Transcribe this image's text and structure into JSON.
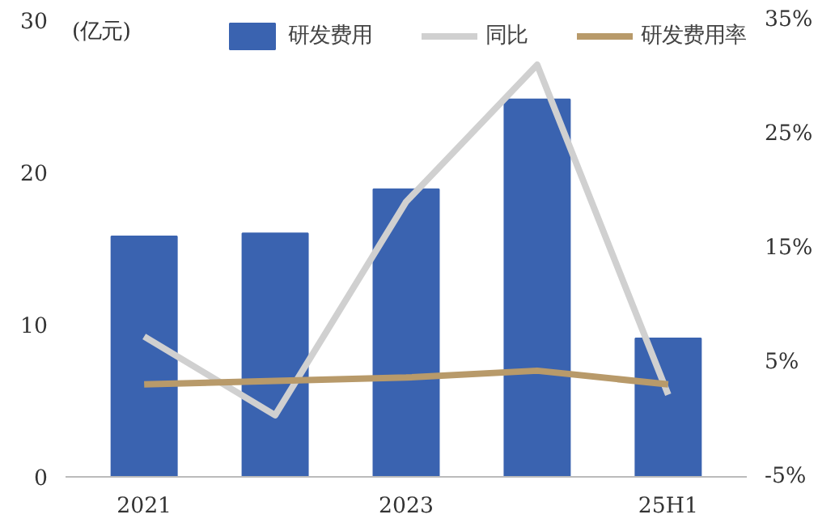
{
  "chart_data": {
    "type": "bar",
    "categories": [
      "2021",
      null,
      "2023",
      null,
      "25H1"
    ],
    "series": [
      {
        "name": "研发费用",
        "color": "#3a63b0",
        "values": [
          15.8,
          16.0,
          18.9,
          24.8,
          9.1
        ]
      },
      {
        "name": "同比",
        "type": "line",
        "axis": "y2",
        "color": "#d0d0d0",
        "values": [
          7.3,
          0.4,
          19.1,
          31.1,
          2.2
        ]
      },
      {
        "name": "研发费用率",
        "type": "line",
        "axis": "y2",
        "color": "#b89a6a",
        "values": [
          3.1,
          3.4,
          3.7,
          4.3,
          3.1
        ]
      }
    ],
    "ylim": [
      0,
      30
    ],
    "yticks": [
      0,
      10,
      20,
      30
    ],
    "y2lim": [
      -5,
      35
    ],
    "y2ticks": [
      {
        "value": -5,
        "label": "-5%"
      },
      {
        "value": 5,
        "label": "5%"
      },
      {
        "value": 15,
        "label": "15%"
      },
      {
        "value": 25,
        "label": "25%"
      },
      {
        "value": 35,
        "label": "35%"
      }
    ],
    "annotations": [
      "(亿元)"
    ],
    "legend": "top",
    "grid": false
  }
}
